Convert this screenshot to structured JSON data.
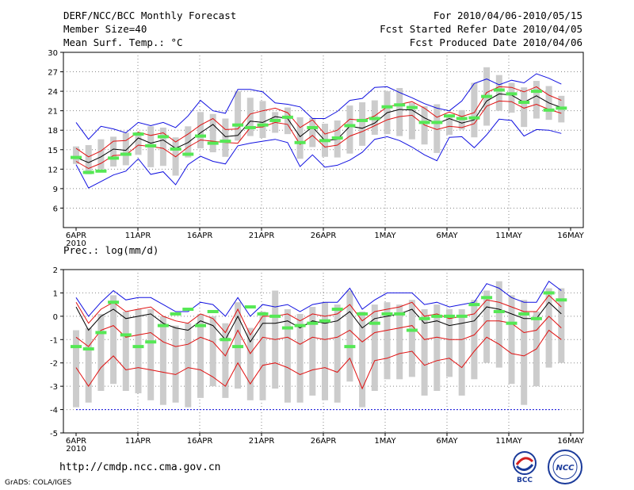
{
  "header": {
    "title": "DERF/NCC/BCC Monthly Forecast",
    "member_size": "Member Size=40",
    "variable": "Mean Surf. Temp.: °C",
    "period": "For 2010/04/06-2010/05/15",
    "start_date": "Fcst Started Refer Date 2010/04/05",
    "produced_date": "Fcst Produced Date 2010/04/06"
  },
  "footer": {
    "url": "http://cmdp.ncc.cma.gov.cn",
    "grads": "GrADS: COLA/IGES",
    "logo_bcc": "BCC",
    "logo_ncc": "NCC"
  },
  "colors": {
    "box": "#cccccc",
    "marker": "#55e855",
    "mean": "#000000",
    "sd": "#e01010",
    "range": "#1010e0",
    "grid": "#888888"
  },
  "chart_data": [
    {
      "type": "line",
      "title": "Mean Surf. Temp.: °C",
      "x_tick_labels": [
        "6APR",
        "11APR",
        "16APR",
        "21APR",
        "26APR",
        "1MAY",
        "6MAY",
        "11MAY",
        "16MAY"
      ],
      "x_sub_label": "2010",
      "ylim": [
        3,
        30
      ],
      "yticks": [
        6,
        9,
        12,
        15,
        18,
        21,
        24,
        27,
        30
      ],
      "days": 40,
      "series": {
        "mean": [
          13.8,
          13.0,
          13.9,
          15.1,
          14.9,
          16.8,
          16.0,
          16.5,
          15.2,
          16.1,
          17.6,
          18.9,
          17.0,
          17.2,
          19.4,
          19.2,
          20.1,
          19.8,
          17.0,
          18.5,
          16.4,
          16.6,
          18.6,
          18.3,
          19.1,
          20.7,
          21.2,
          21.1,
          19.9,
          19.0,
          19.8,
          19.1,
          19.6,
          22.5,
          23.6,
          23.4,
          22.3,
          23.3,
          22.2,
          21.5
        ],
        "sd_upper": [
          15.2,
          13.9,
          14.8,
          16.3,
          16.4,
          17.7,
          17.2,
          17.6,
          16.2,
          17.4,
          18.8,
          19.8,
          18.1,
          18.2,
          20.5,
          21.0,
          21.4,
          20.7,
          18.4,
          19.6,
          17.4,
          18.0,
          19.7,
          19.5,
          20.2,
          21.6,
          22.0,
          22.4,
          21.4,
          20.0,
          20.8,
          20.1,
          20.7,
          23.8,
          24.7,
          24.6,
          23.9,
          24.7,
          23.4,
          22.6
        ],
        "sd_lower": [
          13.2,
          12.1,
          12.9,
          14.1,
          14.2,
          15.7,
          15.5,
          15.2,
          13.9,
          15.4,
          16.5,
          16.3,
          16.1,
          16.0,
          18.4,
          18.5,
          19.2,
          18.9,
          15.8,
          17.2,
          15.4,
          15.7,
          17.1,
          17.8,
          18.7,
          19.6,
          20.1,
          20.3,
          18.8,
          18.1,
          18.6,
          18.4,
          19.0,
          21.7,
          22.5,
          22.4,
          21.4,
          22.0,
          21.2,
          20.6
        ],
        "max": [
          19.2,
          16.6,
          18.6,
          18.2,
          17.6,
          19.2,
          18.7,
          19.2,
          18.4,
          20.2,
          22.6,
          21.0,
          20.6,
          24.3,
          24.3,
          23.9,
          22.2,
          22.0,
          21.6,
          19.8,
          19.8,
          20.9,
          22.6,
          22.9,
          24.6,
          24.7,
          23.8,
          23.0,
          22.1,
          21.4,
          21.0,
          22.5,
          25.2,
          25.9,
          25.0,
          25.7,
          25.3,
          26.7,
          26.0,
          25.1
        ],
        "min": [
          12.7,
          9.1,
          10.1,
          11.1,
          11.7,
          13.6,
          11.2,
          11.6,
          9.6,
          12.7,
          14.0,
          13.2,
          12.8,
          15.6,
          16.0,
          16.3,
          16.6,
          16.1,
          12.4,
          14.2,
          12.3,
          12.6,
          13.4,
          14.6,
          16.6,
          17.0,
          16.4,
          15.4,
          14.2,
          13.3,
          16.9,
          17.0,
          15.3,
          17.3,
          19.7,
          19.5,
          17.1,
          18.1,
          18.0,
          17.5
        ],
        "box_top": [
          15.5,
          15.7,
          16.6,
          17.0,
          17.6,
          17.7,
          18.6,
          18.4,
          16.9,
          18.6,
          20.8,
          20.5,
          19.8,
          24.0,
          23.0,
          22.5,
          20.8,
          21.5,
          20.0,
          19.9,
          19.0,
          19.5,
          21.8,
          22.3,
          22.6,
          24.0,
          24.5,
          22.2,
          21.7,
          22.0,
          20.3,
          21.1,
          25.3,
          27.7,
          26.5,
          25.3,
          24.6,
          25.6,
          24.8,
          23.3
        ],
        "box_bottom": [
          12.8,
          11.2,
          12.0,
          12.4,
          12.6,
          14.2,
          12.3,
          12.5,
          11.0,
          13.8,
          15.2,
          14.6,
          13.9,
          16.4,
          17.1,
          16.8,
          17.6,
          17.4,
          13.6,
          15.4,
          13.9,
          13.8,
          14.4,
          15.6,
          17.3,
          17.4,
          17.1,
          16.6,
          15.8,
          14.5,
          17.3,
          18.1,
          16.9,
          18.7,
          21.0,
          20.7,
          18.5,
          19.8,
          19.6,
          19.2
        ],
        "marker": [
          13.8,
          11.5,
          11.7,
          13.7,
          14.3,
          17.4,
          15.6,
          17.0,
          15.1,
          14.3,
          17.1,
          16.0,
          16.3,
          18.8,
          18.4,
          18.8,
          19.5,
          20.0,
          16.1,
          18.4,
          16.4,
          16.8,
          18.7,
          19.5,
          19.8,
          21.6,
          21.9,
          21.5,
          19.2,
          19.2,
          20.2,
          19.8,
          19.9,
          23.2,
          24.2,
          23.6,
          22.3,
          24.0,
          21.1,
          21.4
        ]
      }
    },
    {
      "type": "line",
      "title": "Prec.: log(mm/d)",
      "x_tick_labels": [
        "6APR",
        "11APR",
        "16APR",
        "21APR",
        "26APR",
        "1MAY",
        "6MAY",
        "11MAY",
        "16MAY"
      ],
      "x_sub_label": "2010",
      "ylim": [
        -5,
        2
      ],
      "yticks": [
        -5,
        -4,
        -3,
        -2,
        -1,
        0,
        1,
        2
      ],
      "days": 40,
      "floor_value": -4,
      "series": {
        "mean": [
          0.4,
          -0.6,
          0.0,
          0.3,
          -0.1,
          0.0,
          0.1,
          -0.3,
          -0.5,
          -0.6,
          -0.2,
          -0.4,
          -1.0,
          0.0,
          -1.1,
          -0.3,
          -0.3,
          -0.2,
          -0.5,
          -0.2,
          -0.3,
          -0.2,
          0.2,
          -0.5,
          -0.1,
          0.0,
          0.1,
          0.3,
          -0.3,
          -0.2,
          -0.4,
          -0.3,
          -0.2,
          0.4,
          0.3,
          0.1,
          -0.1,
          -0.1,
          0.6,
          0.1
        ],
        "sd_upper": [
          0.6,
          -0.3,
          0.3,
          0.6,
          0.2,
          0.3,
          0.4,
          0.0,
          -0.2,
          -0.3,
          0.1,
          -0.1,
          -0.7,
          0.3,
          -0.8,
          0.0,
          0.0,
          0.1,
          -0.2,
          0.1,
          0.0,
          0.1,
          0.5,
          -0.2,
          0.2,
          0.3,
          0.4,
          0.6,
          0.0,
          0.1,
          -0.1,
          0.0,
          0.1,
          0.7,
          0.6,
          0.4,
          0.2,
          0.2,
          0.9,
          0.4
        ],
        "sd_lower": [
          -0.9,
          -1.3,
          -0.6,
          -0.4,
          -0.9,
          -0.8,
          -0.7,
          -1.1,
          -1.3,
          -1.2,
          -0.9,
          -1.1,
          -1.7,
          -0.6,
          -1.6,
          -0.9,
          -1.0,
          -0.9,
          -1.2,
          -0.9,
          -1.0,
          -0.9,
          -0.6,
          -1.1,
          -0.7,
          -0.6,
          -0.5,
          -0.4,
          -1.0,
          -0.9,
          -1.0,
          -1.0,
          -0.8,
          -0.2,
          -0.2,
          -0.3,
          -0.7,
          -0.6,
          0.0,
          -0.5
        ],
        "lower2": [
          -2.2,
          -3.0,
          -2.2,
          -1.7,
          -2.3,
          -2.2,
          -2.3,
          -2.4,
          -2.5,
          -2.2,
          -2.3,
          -2.6,
          -3.0,
          -2.0,
          -2.9,
          -2.1,
          -2.0,
          -2.2,
          -2.5,
          -2.3,
          -2.2,
          -2.4,
          -1.8,
          -3.1,
          -1.9,
          -1.8,
          -1.6,
          -1.5,
          -2.1,
          -1.9,
          -1.8,
          -2.2,
          -1.5,
          -0.9,
          -1.2,
          -1.6,
          -1.7,
          -1.4,
          -0.6,
          -1.0
        ],
        "max": [
          0.8,
          0.0,
          0.6,
          1.1,
          0.7,
          0.8,
          0.8,
          0.5,
          0.2,
          0.2,
          0.6,
          0.5,
          0.0,
          0.8,
          0.0,
          0.5,
          0.4,
          0.5,
          0.2,
          0.5,
          0.6,
          0.6,
          1.2,
          0.3,
          0.7,
          1.0,
          1.0,
          1.0,
          0.5,
          0.6,
          0.4,
          0.5,
          0.6,
          1.4,
          1.2,
          0.8,
          0.6,
          0.6,
          1.5,
          1.1
        ],
        "min": [
          -4.0,
          -4.0,
          -4.0,
          -4.0,
          -4.0,
          -4.0,
          -4.0,
          -4.0,
          -4.0,
          -4.0,
          -4.0,
          -4.0,
          -4.0,
          -4.0,
          -4.0,
          -4.0,
          -4.0,
          -4.0,
          -4.0,
          -4.0,
          -4.0,
          -4.0,
          -4.0,
          -4.0,
          -4.0,
          -4.0,
          -4.0,
          -4.0,
          -4.0,
          -4.0,
          -4.0,
          -4.0,
          -4.0,
          -4.0,
          -4.0,
          -4.0,
          -4.0,
          -4.0,
          -4.0,
          -4.0
        ],
        "box_top": [
          -0.6,
          -0.5,
          0.1,
          0.9,
          0.2,
          0.3,
          0.3,
          0.0,
          -0.4,
          -0.3,
          0.1,
          0.0,
          -0.3,
          0.6,
          -0.5,
          0.2,
          1.1,
          0.3,
          0.1,
          0.4,
          0.6,
          0.5,
          1.1,
          0.2,
          0.5,
          0.6,
          0.5,
          0.7,
          0.3,
          0.5,
          0.3,
          0.3,
          0.7,
          1.1,
          1.5,
          0.9,
          0.7,
          0.2,
          1.2,
          1.2
        ],
        "box_bottom": [
          -3.9,
          -3.7,
          -3.2,
          -2.9,
          -3.2,
          -3.3,
          -3.6,
          -3.8,
          -3.7,
          -3.9,
          -3.5,
          -3.0,
          -3.5,
          -3.1,
          -3.6,
          -3.6,
          -3.1,
          -3.7,
          -3.7,
          -3.4,
          -3.6,
          -3.7,
          -2.8,
          -3.9,
          -3.2,
          -2.7,
          -2.7,
          -2.6,
          -3.4,
          -3.2,
          -2.6,
          -3.4,
          -2.7,
          -2.0,
          -2.2,
          -2.9,
          -3.8,
          -3.0,
          -2.2,
          -2.0
        ],
        "marker": [
          -1.3,
          -1.4,
          -0.7,
          0.6,
          -0.8,
          -1.3,
          -1.1,
          -0.4,
          0.1,
          0.3,
          -0.4,
          0.2,
          -1.0,
          -1.3,
          0.4,
          0.1,
          0.0,
          -0.5,
          -0.4,
          -0.3,
          -0.2,
          0.3,
          -1.3,
          0.1,
          -0.3,
          0.1,
          0.1,
          -0.6,
          -0.1,
          0.0,
          0.0,
          0.0,
          0.5,
          0.8,
          0.2,
          -0.3,
          0.1,
          -0.1,
          1.0,
          0.7
        ]
      }
    }
  ]
}
